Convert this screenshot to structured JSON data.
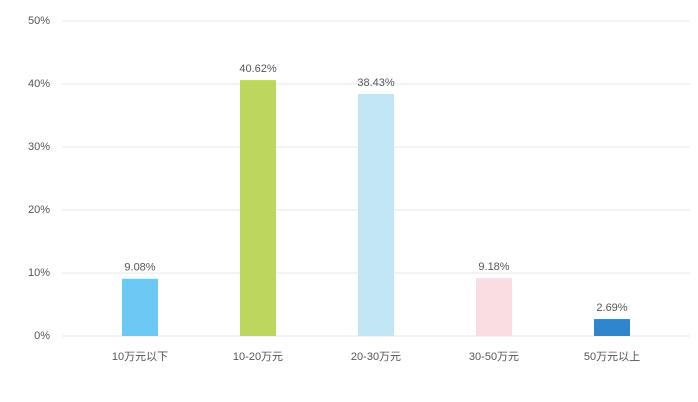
{
  "chart_data": {
    "type": "bar",
    "categories": [
      "10万元以下",
      "10-20万元",
      "20-30万元",
      "30-50万元",
      "50万元以上"
    ],
    "values": [
      9.08,
      40.62,
      38.43,
      9.18,
      2.69
    ],
    "value_labels": [
      "9.08%",
      "40.62%",
      "38.43%",
      "9.18%",
      "2.69%"
    ],
    "colors": [
      "#6bc9f3",
      "#bdd65d",
      "#c3e6f6",
      "#f9dde3",
      "#2f86cc"
    ],
    "ylim": [
      0,
      50
    ],
    "yticks": [
      {
        "value": 0,
        "label": "0%"
      },
      {
        "value": 10,
        "label": "10%"
      },
      {
        "value": 20,
        "label": "20%"
      },
      {
        "value": 30,
        "label": "30%"
      },
      {
        "value": 40,
        "label": "40%"
      },
      {
        "value": 50,
        "label": "50%"
      }
    ],
    "grid": true
  }
}
